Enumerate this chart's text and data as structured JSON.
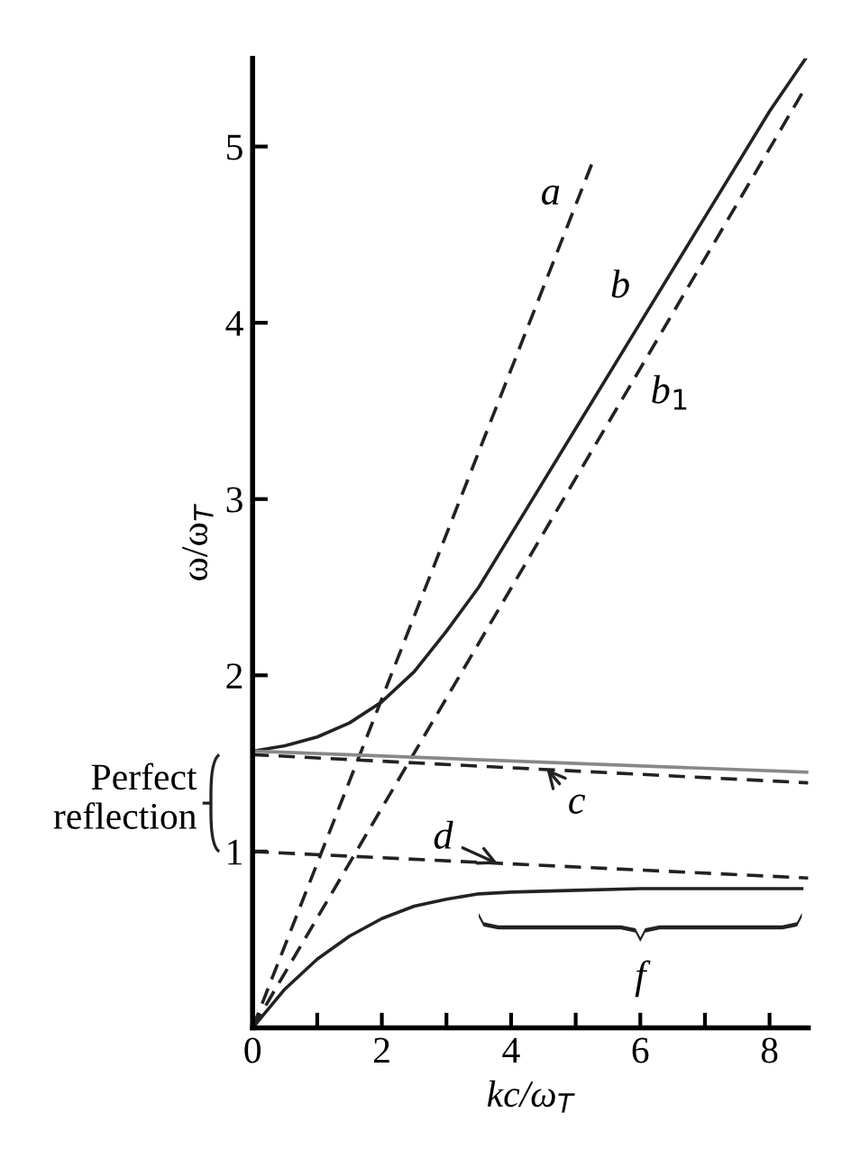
{
  "chart_data": {
    "type": "line",
    "xlabel": "kc/ω$_{T}$",
    "ylabel": "ω/ω$_{T}$",
    "xlim": [
      0,
      8.6
    ],
    "ylim": [
      0,
      5.5
    ],
    "xticks": [
      0,
      {
        "value": 1,
        "label": null
      },
      2,
      {
        "value": 3,
        "label": null
      },
      4,
      {
        "value": 5,
        "label": null
      },
      6,
      {
        "value": 7,
        "label": null
      },
      8
    ],
    "yticks": [
      1,
      2,
      3,
      4,
      5
    ],
    "grid": false,
    "legend": false,
    "series": [
      {
        "color": "#222222",
        "line_style": "dashed",
        "x": [
          0,
          5.28
        ],
        "values": [
          0,
          4.93
        ]
      },
      {
        "color": "#222222",
        "line_style": "dashed",
        "x": [
          0,
          8.5
        ],
        "values": [
          0,
          5.3
        ]
      },
      {
        "color": "#222222",
        "line_style": "solid",
        "x": [
          0,
          0.5,
          1,
          1.5,
          2,
          2.5,
          3,
          3.5,
          4,
          5,
          6,
          7,
          8,
          8.56
        ],
        "values": [
          1.57,
          1.6,
          1.65,
          1.73,
          1.85,
          2.02,
          2.25,
          2.5,
          2.8,
          3.4,
          4.0,
          4.6,
          5.2,
          5.5
        ]
      },
      {
        "color": "#888888",
        "line_style": "solid",
        "x": [
          0,
          8.6
        ],
        "values": [
          1.57,
          1.45
        ]
      },
      {
        "color": "#222222",
        "line_style": "dashed",
        "x": [
          0,
          8.6
        ],
        "values": [
          1.55,
          1.39
        ]
      },
      {
        "color": "#222222",
        "line_style": "dashed",
        "x": [
          0,
          8.6
        ],
        "values": [
          1.0,
          0.85
        ]
      },
      {
        "color": "#222222",
        "line_style": "solid",
        "x": [
          0,
          0.5,
          1,
          1.5,
          2,
          2.5,
          3,
          3.5,
          4,
          5,
          6,
          7,
          8,
          8.5
        ],
        "values": [
          0,
          0.22,
          0.39,
          0.52,
          0.62,
          0.69,
          0.73,
          0.76,
          0.77,
          0.78,
          0.79,
          0.79,
          0.79,
          0.79
        ]
      }
    ],
    "annotations": [
      {
        "text": "a",
        "x": 5.0,
        "y": 4.67
      },
      {
        "text": "b",
        "x": 6.0,
        "y": 4.0
      },
      {
        "text": "b$_{1}$",
        "x": 6.0,
        "y": 3.74
      },
      {
        "text": "c",
        "x": 4.55,
        "y": 1.47
      },
      {
        "text": "d",
        "x": 3.8,
        "y": 0.93
      },
      {
        "text": "f",
        "x": 6.0,
        "y": 0.79
      },
      "Perfect\nreflection"
    ]
  }
}
